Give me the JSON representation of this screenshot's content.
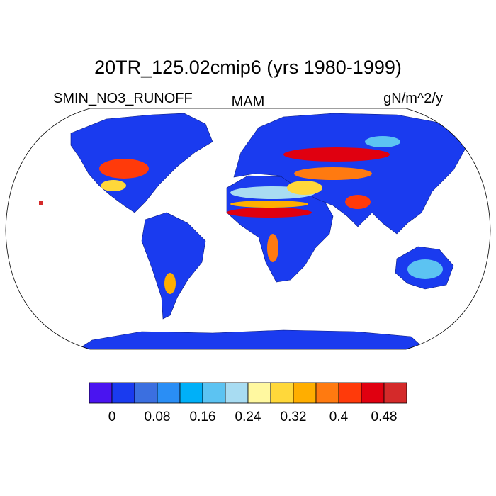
{
  "map": {
    "title": "20TR_125.02cmip6 (yrs 1980-1999)",
    "left_string": "SMIN_NO3_RUNOFF",
    "center_string": "MAM",
    "right_string": "gN/m^2/y",
    "colorbar": {
      "colors": [
        "#4a14f0",
        "#1a3bef",
        "#3b6fe0",
        "#2a8ef5",
        "#00b0f8",
        "#5cc3f2",
        "#a8dcf2",
        "#fff8a0",
        "#ffd83a",
        "#ffae00",
        "#ff7a10",
        "#ff3a0a",
        "#e00010",
        "#d42a2a"
      ],
      "labels": [
        0,
        0.08,
        0.16,
        0.24,
        0.32,
        0.4,
        0.48
      ]
    }
  }
}
